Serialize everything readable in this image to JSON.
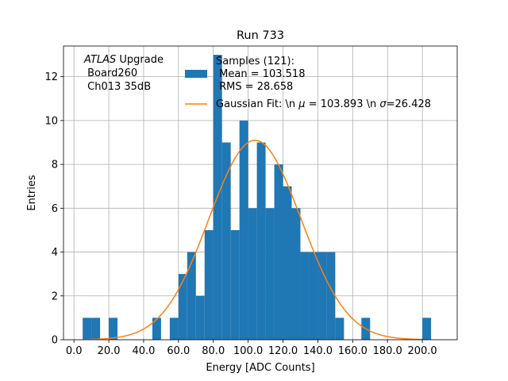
{
  "chart_data": {
    "type": "bar",
    "title": "Run 733",
    "xlabel": "Energy [ADC Counts]",
    "ylabel": "Entries",
    "xlim": [
      -6,
      220
    ],
    "ylim": [
      0,
      13.4
    ],
    "x_ticks": [
      0,
      20,
      40,
      60,
      80,
      100,
      120,
      140,
      160,
      180,
      200
    ],
    "x_tick_labels": [
      "0.0",
      "20.0",
      "40.0",
      "60.0",
      "80.0",
      "100.0",
      "120.0",
      "140.0",
      "160.0",
      "180.0",
      "200.0"
    ],
    "y_ticks": [
      0,
      2,
      4,
      6,
      8,
      10,
      12
    ],
    "y_tick_labels": [
      "0",
      "2",
      "4",
      "6",
      "8",
      "10",
      "12"
    ],
    "grid": true,
    "bin_width": 5,
    "bins": [
      {
        "x0": 5,
        "count": 1
      },
      {
        "x0": 10,
        "count": 1
      },
      {
        "x0": 20,
        "count": 1
      },
      {
        "x0": 45,
        "count": 1
      },
      {
        "x0": 55,
        "count": 1
      },
      {
        "x0": 60,
        "count": 3
      },
      {
        "x0": 65,
        "count": 4
      },
      {
        "x0": 70,
        "count": 2
      },
      {
        "x0": 75,
        "count": 5
      },
      {
        "x0": 80,
        "count": 13
      },
      {
        "x0": 85,
        "count": 9
      },
      {
        "x0": 90,
        "count": 5
      },
      {
        "x0": 95,
        "count": 10
      },
      {
        "x0": 100,
        "count": 6
      },
      {
        "x0": 105,
        "count": 9
      },
      {
        "x0": 110,
        "count": 6
      },
      {
        "x0": 115,
        "count": 8
      },
      {
        "x0": 120,
        "count": 7
      },
      {
        "x0": 125,
        "count": 6
      },
      {
        "x0": 130,
        "count": 4
      },
      {
        "x0": 135,
        "count": 4
      },
      {
        "x0": 140,
        "count": 4
      },
      {
        "x0": 145,
        "count": 4
      },
      {
        "x0": 150,
        "count": 1
      },
      {
        "x0": 165,
        "count": 1
      },
      {
        "x0": 200,
        "count": 1
      }
    ],
    "fit": {
      "mu": 103.893,
      "sigma": 26.428,
      "amplitude": 9.1
    },
    "series": [
      {
        "name": "Samples (121):\n Mean = 103.518\n RMS = 28.658",
        "color": "#1f77b4",
        "kind": "histogram"
      },
      {
        "name": "Gaussian Fit: \\n $\\mu$ = 103.893 \\n $\\sigma$=26.428",
        "color": "#ff7f0e",
        "kind": "line"
      }
    ],
    "legend_placement": "top-center",
    "annotation": {
      "italic": "ATLAS",
      "rest": " Upgrade",
      "line2": " Board260",
      "line3": " Ch013 35dB"
    }
  },
  "legend": {
    "hist_line1": "Samples (121):",
    "hist_line2": " Mean = 103.518",
    "hist_line3": " RMS = 28.658",
    "fit_prefix": "Gaussian Fit: \\n ",
    "fit_mu_symbol": "μ",
    "fit_mid": " = 103.893 \\n ",
    "fit_sigma_symbol": "σ",
    "fit_suffix": "=26.428"
  }
}
